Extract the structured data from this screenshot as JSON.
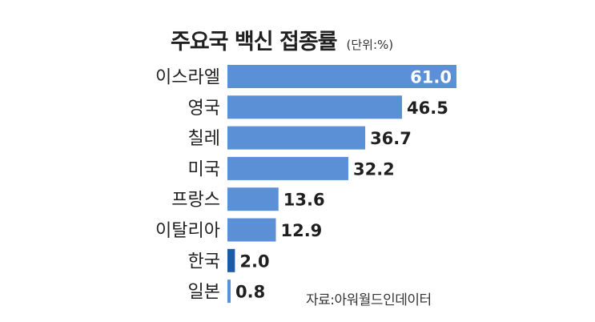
{
  "chart_data": {
    "type": "bar",
    "orientation": "horizontal",
    "title": "주요국 백신 접종률",
    "unit": "(단위:%)",
    "categories": [
      "이스라엘",
      "영국",
      "칠레",
      "미국",
      "프랑스",
      "이탈리아",
      "한국",
      "일본"
    ],
    "values": [
      61.0,
      46.5,
      36.7,
      32.2,
      13.6,
      12.9,
      2.0,
      0.8
    ],
    "value_labels": [
      "61.0",
      "46.5",
      "36.7",
      "32.2",
      "13.6",
      "12.9",
      "2.0",
      "0.8"
    ],
    "source": "자료:아워월드인데이터",
    "xlim": [
      0,
      61.0
    ],
    "colors": {
      "bar": "#5b8fd6",
      "bar_highlight": "#1f5aa8",
      "label_inside": "#ffffff",
      "label_outside": "#1f1f1f"
    },
    "highlight_category": "한국",
    "grid": false,
    "legend": "none"
  }
}
